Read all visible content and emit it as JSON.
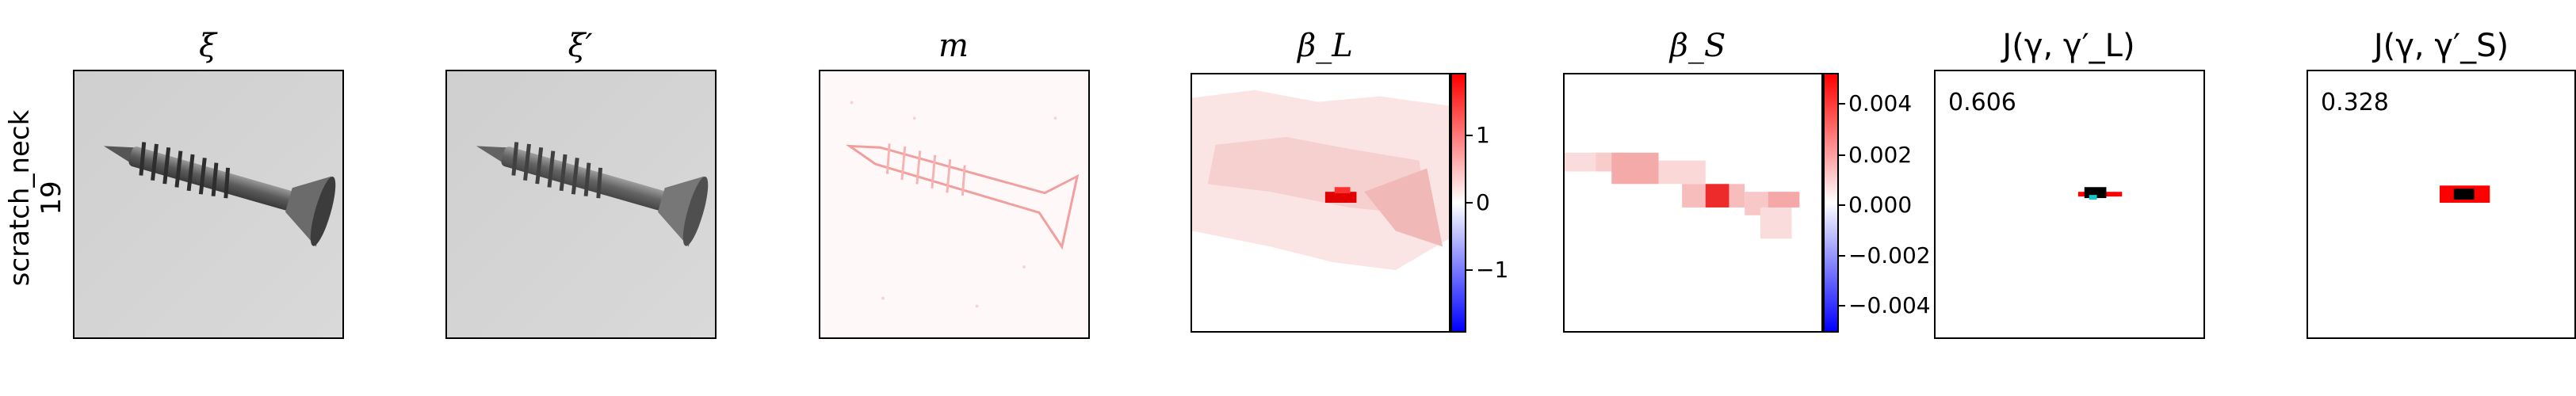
{
  "row_label": {
    "line1": "scratch_neck",
    "line2": "19"
  },
  "panels": [
    {
      "title": "ξ"
    },
    {
      "title": "ξ′"
    },
    {
      "title": "m"
    },
    {
      "title": "β_L",
      "colorbar_ticks": [
        "1",
        "0",
        "−1"
      ]
    },
    {
      "title": "β_S",
      "colorbar_ticks": [
        "0.004",
        "0.002",
        "0.000",
        "−0.002",
        "−0.004"
      ]
    },
    {
      "title": "J(γ, γ′_L)",
      "score": "0.606"
    },
    {
      "title": "J(γ, γ′_S)",
      "score": "0.328"
    }
  ],
  "colors": {
    "diverging_neg": "#0000ff",
    "diverging_pos": "#ff0000",
    "mask": "#ff0000",
    "overlay": "#000000"
  }
}
